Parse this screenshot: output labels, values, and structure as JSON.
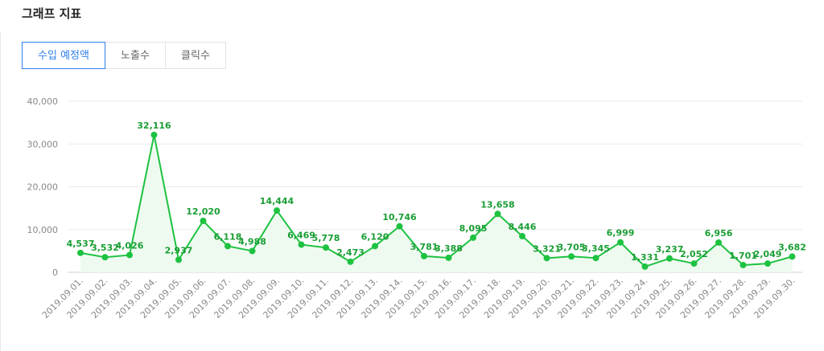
{
  "page_title": "그래프 지표",
  "tabs": [
    {
      "label": "수입 예정액",
      "active": true
    },
    {
      "label": "노출수",
      "active": false
    },
    {
      "label": "클릭수",
      "active": false
    }
  ],
  "colors": {
    "series": "#1ec241",
    "fill": "#eefaf0",
    "active_tab": "#2f80ed",
    "grid": "#e9e9e9"
  },
  "chart_data": {
    "type": "area",
    "categories": [
      "2019.09.01.",
      "2019.09.02.",
      "2019.09.03.",
      "2019.09.04.",
      "2019.09.05.",
      "2019.09.06.",
      "2019.09.07.",
      "2019.09.08.",
      "2019.09.09.",
      "2019.09.10.",
      "2019.09.11.",
      "2019.09.12.",
      "2019.09.13.",
      "2019.09.14.",
      "2019.09.15.",
      "2019.09.16.",
      "2019.09.17.",
      "2019.09.18.",
      "2019.09.19.",
      "2019.09.20.",
      "2019.09.21.",
      "2019.09.22.",
      "2019.09.23.",
      "2019.09.24.",
      "2019.09.25.",
      "2019.09.26.",
      "2019.09.27.",
      "2019.09.28.",
      "2019.09.29.",
      "2019.09.30."
    ],
    "values": [
      4537,
      3532,
      4026,
      32116,
      2937,
      12020,
      6118,
      4988,
      14444,
      6469,
      5778,
      2473,
      6120,
      10746,
      3781,
      3388,
      8095,
      13658,
      8446,
      3321,
      3705,
      3345,
      6999,
      1331,
      3237,
      2052,
      6956,
      1701,
      2049,
      3682
    ],
    "data_labels": [
      "4,537",
      "3,532",
      "4,026",
      "32,116",
      "2,937",
      "12,020",
      "6,118",
      "4,988",
      "14,444",
      "6,469",
      "5,778",
      "2,473",
      "6,120",
      "10,746",
      "3,781",
      "3,388",
      "8,095",
      "13,658",
      "8,446",
      "3,321",
      "3,705",
      "3,345",
      "6,999",
      "1,331",
      "3,237",
      "2,052",
      "6,956",
      "1,701",
      "2,049",
      "3,682"
    ],
    "yticks": [
      0,
      10000,
      20000,
      30000,
      40000
    ],
    "ytick_labels": [
      "0",
      "10,000",
      "20,000",
      "30,000",
      "40,000"
    ],
    "ylim": [
      0,
      40000
    ],
    "grid": true
  }
}
